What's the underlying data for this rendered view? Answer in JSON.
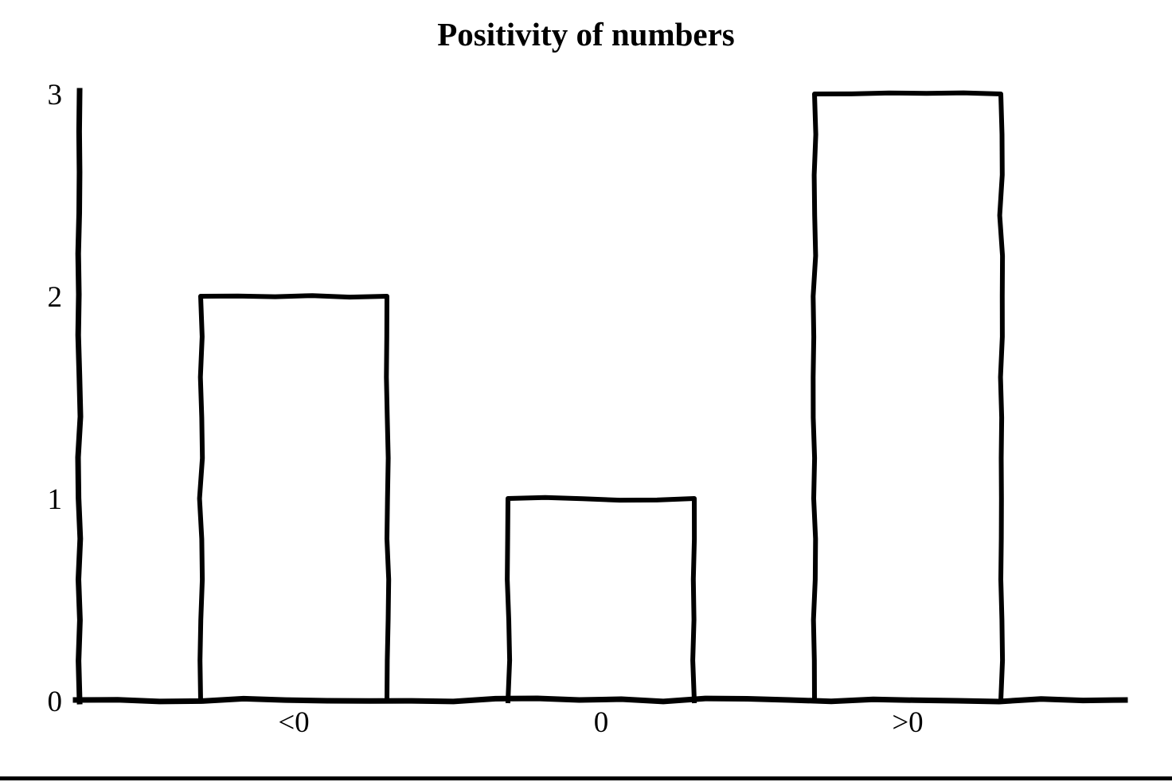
{
  "chart_data": {
    "type": "bar",
    "title": "Positivity of numbers",
    "categories": [
      "<0",
      "0",
      ">0"
    ],
    "values": [
      2,
      1,
      3
    ],
    "yticks": [
      0,
      1,
      2,
      3
    ],
    "ylim": [
      0,
      3
    ],
    "xlabel": "",
    "ylabel": "",
    "grid": false,
    "legend": false,
    "style": "hand-drawn outline bars, white fill, black stroke",
    "colors": {
      "ink": "#000000",
      "bar_fill": "#ffffff",
      "background": "#ffffff"
    }
  }
}
